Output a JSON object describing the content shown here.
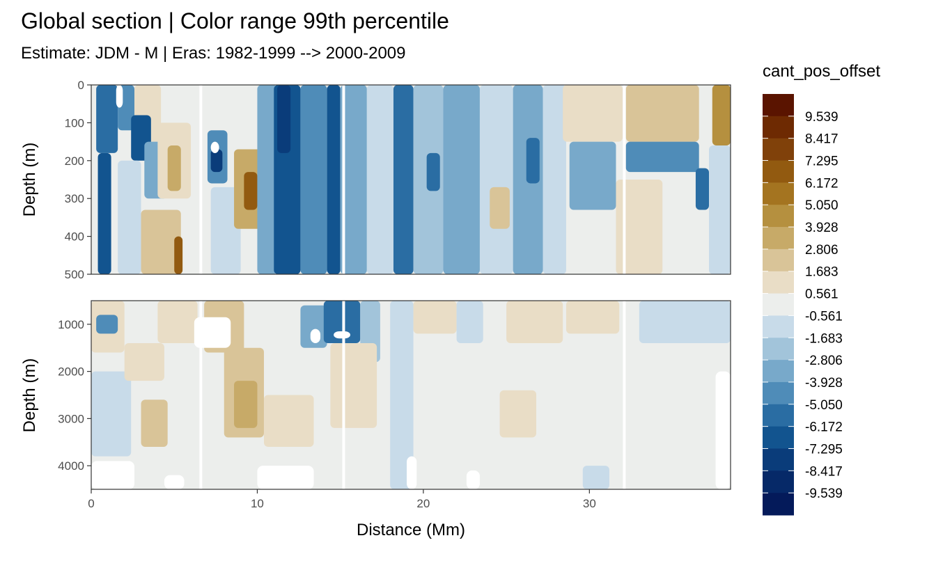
{
  "chart_data": {
    "type": "heatmap",
    "title": "Global section | Color range 99th percentile",
    "subtitle": "Estimate: JDM - M | Eras: 1982-1999 --> 2000-2009",
    "xlabel": "Distance (Mm)",
    "ylabel": "Depth (m)",
    "xlim": [
      0,
      38.5
    ],
    "x_ticks": [
      0,
      10,
      20,
      30
    ],
    "grid": false,
    "panels": [
      {
        "name": "upper",
        "ylim": [
          0,
          500
        ],
        "y_reversed": true,
        "y_ticks": [
          0,
          100,
          200,
          300,
          400,
          500
        ]
      },
      {
        "name": "lower",
        "ylim": [
          500,
          4500
        ],
        "y_reversed": true,
        "y_ticks": [
          1000,
          2000,
          3000,
          4000
        ]
      }
    ],
    "legend": {
      "title": "cant_pos_offset",
      "placement": "right",
      "labels": [
        "9.539",
        "8.417",
        "7.295",
        "6.172",
        "5.050",
        "3.928",
        "2.806",
        "1.683",
        "0.561",
        "-0.561",
        "-1.683",
        "-2.806",
        "-3.928",
        "-5.050",
        "-6.172",
        "-7.295",
        "-8.417",
        "-9.539"
      ],
      "colors": [
        "#5a1400",
        "#6e2a02",
        "#80410a",
        "#925a10",
        "#a47420",
        "#b5903f",
        "#c7aa68",
        "#d9c498",
        "#e9ddc6",
        "#eceeec",
        "#c8dbe9",
        "#a2c4da",
        "#78a9ca",
        "#4f8cb8",
        "#2a6da3",
        "#12548f",
        "#0a3c7a",
        "#062968",
        "#041a5a"
      ]
    },
    "regions": [
      {
        "panel": "upper",
        "x": [
          0.3,
          1.6
        ],
        "y": [
          0,
          180
        ],
        "value": -5.6
      },
      {
        "panel": "upper",
        "x": [
          0.4,
          1.2
        ],
        "y": [
          180,
          500
        ],
        "value": -6.2
      },
      {
        "panel": "upper",
        "x": [
          1.6,
          2.6
        ],
        "y": [
          0,
          120
        ],
        "value": -4.5
      },
      {
        "panel": "upper",
        "x": [
          2.6,
          4.2
        ],
        "y": [
          0,
          150
        ],
        "value": 1.1
      },
      {
        "panel": "upper",
        "x": [
          2.4,
          3.6
        ],
        "y": [
          80,
          200
        ],
        "value": -6.7
      },
      {
        "panel": "upper",
        "x": [
          3.2,
          4.6
        ],
        "y": [
          150,
          300
        ],
        "value": -3.4
      },
      {
        "panel": "upper",
        "x": [
          1.6,
          3.0
        ],
        "y": [
          200,
          500
        ],
        "value": -1.1
      },
      {
        "panel": "upper",
        "x": [
          3.0,
          5.4
        ],
        "y": [
          330,
          500
        ],
        "value": 2.2
      },
      {
        "panel": "upper",
        "x": [
          4.0,
          6.0
        ],
        "y": [
          100,
          300
        ],
        "value": 1.1
      },
      {
        "panel": "upper",
        "x": [
          4.6,
          5.4
        ],
        "y": [
          160,
          280
        ],
        "value": 3.4
      },
      {
        "panel": "upper",
        "x": [
          5.0,
          5.5
        ],
        "y": [
          400,
          500
        ],
        "value": 6.2
      },
      {
        "panel": "upper",
        "x": [
          6.8,
          8.6
        ],
        "y": [
          0,
          120
        ],
        "value": 0.0
      },
      {
        "panel": "upper",
        "x": [
          7.0,
          8.2
        ],
        "y": [
          120,
          260
        ],
        "value": -4.5
      },
      {
        "panel": "upper",
        "x": [
          7.2,
          7.9
        ],
        "y": [
          170,
          230
        ],
        "value": -8.4
      },
      {
        "panel": "upper",
        "x": [
          7.2,
          9.0
        ],
        "y": [
          270,
          500
        ],
        "value": -1.1
      },
      {
        "panel": "upper",
        "x": [
          8.6,
          10.6
        ],
        "y": [
          170,
          380
        ],
        "value": 3.4
      },
      {
        "panel": "upper",
        "x": [
          9.2,
          10.0
        ],
        "y": [
          230,
          330
        ],
        "value": 6.7
      },
      {
        "panel": "upper",
        "x": [
          10.0,
          11.2
        ],
        "y": [
          0,
          500
        ],
        "value": -3.4
      },
      {
        "panel": "upper",
        "x": [
          11.0,
          12.6
        ],
        "y": [
          0,
          500
        ],
        "value": -6.2
      },
      {
        "panel": "upper",
        "x": [
          11.2,
          12.0
        ],
        "y": [
          0,
          180
        ],
        "value": -8.4
      },
      {
        "panel": "upper",
        "x": [
          12.6,
          14.2
        ],
        "y": [
          0,
          500
        ],
        "value": -4.5
      },
      {
        "panel": "upper",
        "x": [
          14.2,
          15.0
        ],
        "y": [
          0,
          500
        ],
        "value": -6.2
      },
      {
        "panel": "upper",
        "x": [
          15.0,
          16.6
        ],
        "y": [
          0,
          500
        ],
        "value": -3.4
      },
      {
        "panel": "upper",
        "x": [
          16.6,
          18.2
        ],
        "y": [
          0,
          500
        ],
        "value": -1.1
      },
      {
        "panel": "upper",
        "x": [
          18.2,
          19.4
        ],
        "y": [
          0,
          500
        ],
        "value": -5.6
      },
      {
        "panel": "upper",
        "x": [
          19.4,
          21.2
        ],
        "y": [
          0,
          500
        ],
        "value": -2.2
      },
      {
        "panel": "upper",
        "x": [
          20.2,
          21.0
        ],
        "y": [
          180,
          280
        ],
        "value": -5.6
      },
      {
        "panel": "upper",
        "x": [
          21.2,
          23.4
        ],
        "y": [
          0,
          500
        ],
        "value": -3.4
      },
      {
        "panel": "upper",
        "x": [
          23.4,
          25.4
        ],
        "y": [
          0,
          500
        ],
        "value": -1.1
      },
      {
        "panel": "upper",
        "x": [
          24.0,
          25.2
        ],
        "y": [
          270,
          380
        ],
        "value": 1.7
      },
      {
        "panel": "upper",
        "x": [
          25.4,
          27.2
        ],
        "y": [
          0,
          500
        ],
        "value": -3.4
      },
      {
        "panel": "upper",
        "x": [
          26.2,
          27.0
        ],
        "y": [
          140,
          260
        ],
        "value": -5.6
      },
      {
        "panel": "upper",
        "x": [
          27.2,
          28.6
        ],
        "y": [
          0,
          500
        ],
        "value": -0.6
      },
      {
        "panel": "upper",
        "x": [
          28.4,
          32.0
        ],
        "y": [
          0,
          150
        ],
        "value": 1.1
      },
      {
        "panel": "upper",
        "x": [
          32.2,
          36.6
        ],
        "y": [
          0,
          150
        ],
        "value": 1.7
      },
      {
        "panel": "upper",
        "x": [
          28.8,
          31.6
        ],
        "y": [
          150,
          330
        ],
        "value": -3.4
      },
      {
        "panel": "upper",
        "x": [
          32.2,
          36.6
        ],
        "y": [
          150,
          230
        ],
        "value": -4.5
      },
      {
        "panel": "upper",
        "x": [
          31.6,
          34.4
        ],
        "y": [
          250,
          500
        ],
        "value": 1.1
      },
      {
        "panel": "upper",
        "x": [
          36.4,
          37.2
        ],
        "y": [
          220,
          330
        ],
        "value": -5.6
      },
      {
        "panel": "upper",
        "x": [
          37.4,
          38.5
        ],
        "y": [
          0,
          160
        ],
        "value": 5.0
      },
      {
        "panel": "upper",
        "x": [
          37.2,
          38.5
        ],
        "y": [
          160,
          500
        ],
        "value": -1.1
      },
      {
        "panel": "lower",
        "x": [
          0.0,
          2.0
        ],
        "y": [
          500,
          1600
        ],
        "value": 1.1
      },
      {
        "panel": "lower",
        "x": [
          0.3,
          1.6
        ],
        "y": [
          800,
          1200
        ],
        "value": -4.5
      },
      {
        "panel": "lower",
        "x": [
          0.0,
          2.4
        ],
        "y": [
          2000,
          3800
        ],
        "value": -1.1
      },
      {
        "panel": "lower",
        "x": [
          2.0,
          4.4
        ],
        "y": [
          1400,
          2200
        ],
        "value": 1.1
      },
      {
        "panel": "lower",
        "x": [
          3.0,
          4.6
        ],
        "y": [
          2600,
          3600
        ],
        "value": 2.2
      },
      {
        "panel": "lower",
        "x": [
          4.0,
          6.4
        ],
        "y": [
          500,
          1400
        ],
        "value": 1.1
      },
      {
        "panel": "lower",
        "x": [
          6.8,
          9.2
        ],
        "y": [
          500,
          1600
        ],
        "value": 2.2
      },
      {
        "panel": "lower",
        "x": [
          8.0,
          10.4
        ],
        "y": [
          1500,
          3400
        ],
        "value": 2.2
      },
      {
        "panel": "lower",
        "x": [
          8.6,
          10.0
        ],
        "y": [
          2200,
          3200
        ],
        "value": 3.4
      },
      {
        "panel": "lower",
        "x": [
          10.4,
          13.4
        ],
        "y": [
          2500,
          3600
        ],
        "value": 1.1
      },
      {
        "panel": "lower",
        "x": [
          12.6,
          14.2
        ],
        "y": [
          600,
          1500
        ],
        "value": -3.4
      },
      {
        "panel": "lower",
        "x": [
          14.0,
          16.2
        ],
        "y": [
          500,
          1400
        ],
        "value": -5.6
      },
      {
        "panel": "lower",
        "x": [
          16.2,
          17.4
        ],
        "y": [
          500,
          1800
        ],
        "value": -2.2
      },
      {
        "panel": "lower",
        "x": [
          14.4,
          17.2
        ],
        "y": [
          1400,
          3200
        ],
        "value": 1.1
      },
      {
        "panel": "lower",
        "x": [
          18.0,
          19.4
        ],
        "y": [
          500,
          4500
        ],
        "value": -0.8
      },
      {
        "panel": "lower",
        "x": [
          19.4,
          22.0
        ],
        "y": [
          500,
          1200
        ],
        "value": 1.1
      },
      {
        "panel": "lower",
        "x": [
          22.0,
          23.6
        ],
        "y": [
          500,
          1400
        ],
        "value": -1.1
      },
      {
        "panel": "lower",
        "x": [
          25.0,
          28.4
        ],
        "y": [
          500,
          1400
        ],
        "value": 1.1
      },
      {
        "panel": "lower",
        "x": [
          28.6,
          31.8
        ],
        "y": [
          500,
          1200
        ],
        "value": 0.7
      },
      {
        "panel": "lower",
        "x": [
          33.0,
          38.5
        ],
        "y": [
          500,
          1400
        ],
        "value": -0.8
      },
      {
        "panel": "lower",
        "x": [
          24.6,
          26.8
        ],
        "y": [
          2400,
          3400
        ],
        "value": 0.9
      },
      {
        "panel": "lower",
        "x": [
          29.6,
          31.2
        ],
        "y": [
          4000,
          4500
        ],
        "value": -1.1
      }
    ],
    "gaps": [
      {
        "panel": "upper",
        "x": [
          1.5,
          1.9
        ],
        "y": [
          0,
          60
        ]
      },
      {
        "panel": "upper",
        "x": [
          7.2,
          7.7
        ],
        "y": [
          150,
          180
        ]
      },
      {
        "panel": "lower",
        "x": [
          6.2,
          8.4
        ],
        "y": [
          850,
          1500
        ]
      },
      {
        "panel": "lower",
        "x": [
          13.2,
          13.8
        ],
        "y": [
          1100,
          1400
        ]
      },
      {
        "panel": "lower",
        "x": [
          14.6,
          15.6
        ],
        "y": [
          1150,
          1300
        ]
      },
      {
        "panel": "lower",
        "x": [
          0.0,
          2.6
        ],
        "y": [
          3900,
          4500
        ]
      },
      {
        "panel": "lower",
        "x": [
          4.4,
          5.6
        ],
        "y": [
          4200,
          4500
        ]
      },
      {
        "panel": "lower",
        "x": [
          10.0,
          13.4
        ],
        "y": [
          4000,
          4500
        ]
      },
      {
        "panel": "lower",
        "x": [
          19.0,
          19.6
        ],
        "y": [
          3800,
          4500
        ]
      },
      {
        "panel": "lower",
        "x": [
          22.6,
          23.4
        ],
        "y": [
          4100,
          4500
        ]
      },
      {
        "panel": "lower",
        "x": [
          37.6,
          38.5
        ],
        "y": [
          2000,
          4500
        ]
      }
    ],
    "missing_columns": [
      6.6,
      15.2,
      32.1
    ]
  }
}
